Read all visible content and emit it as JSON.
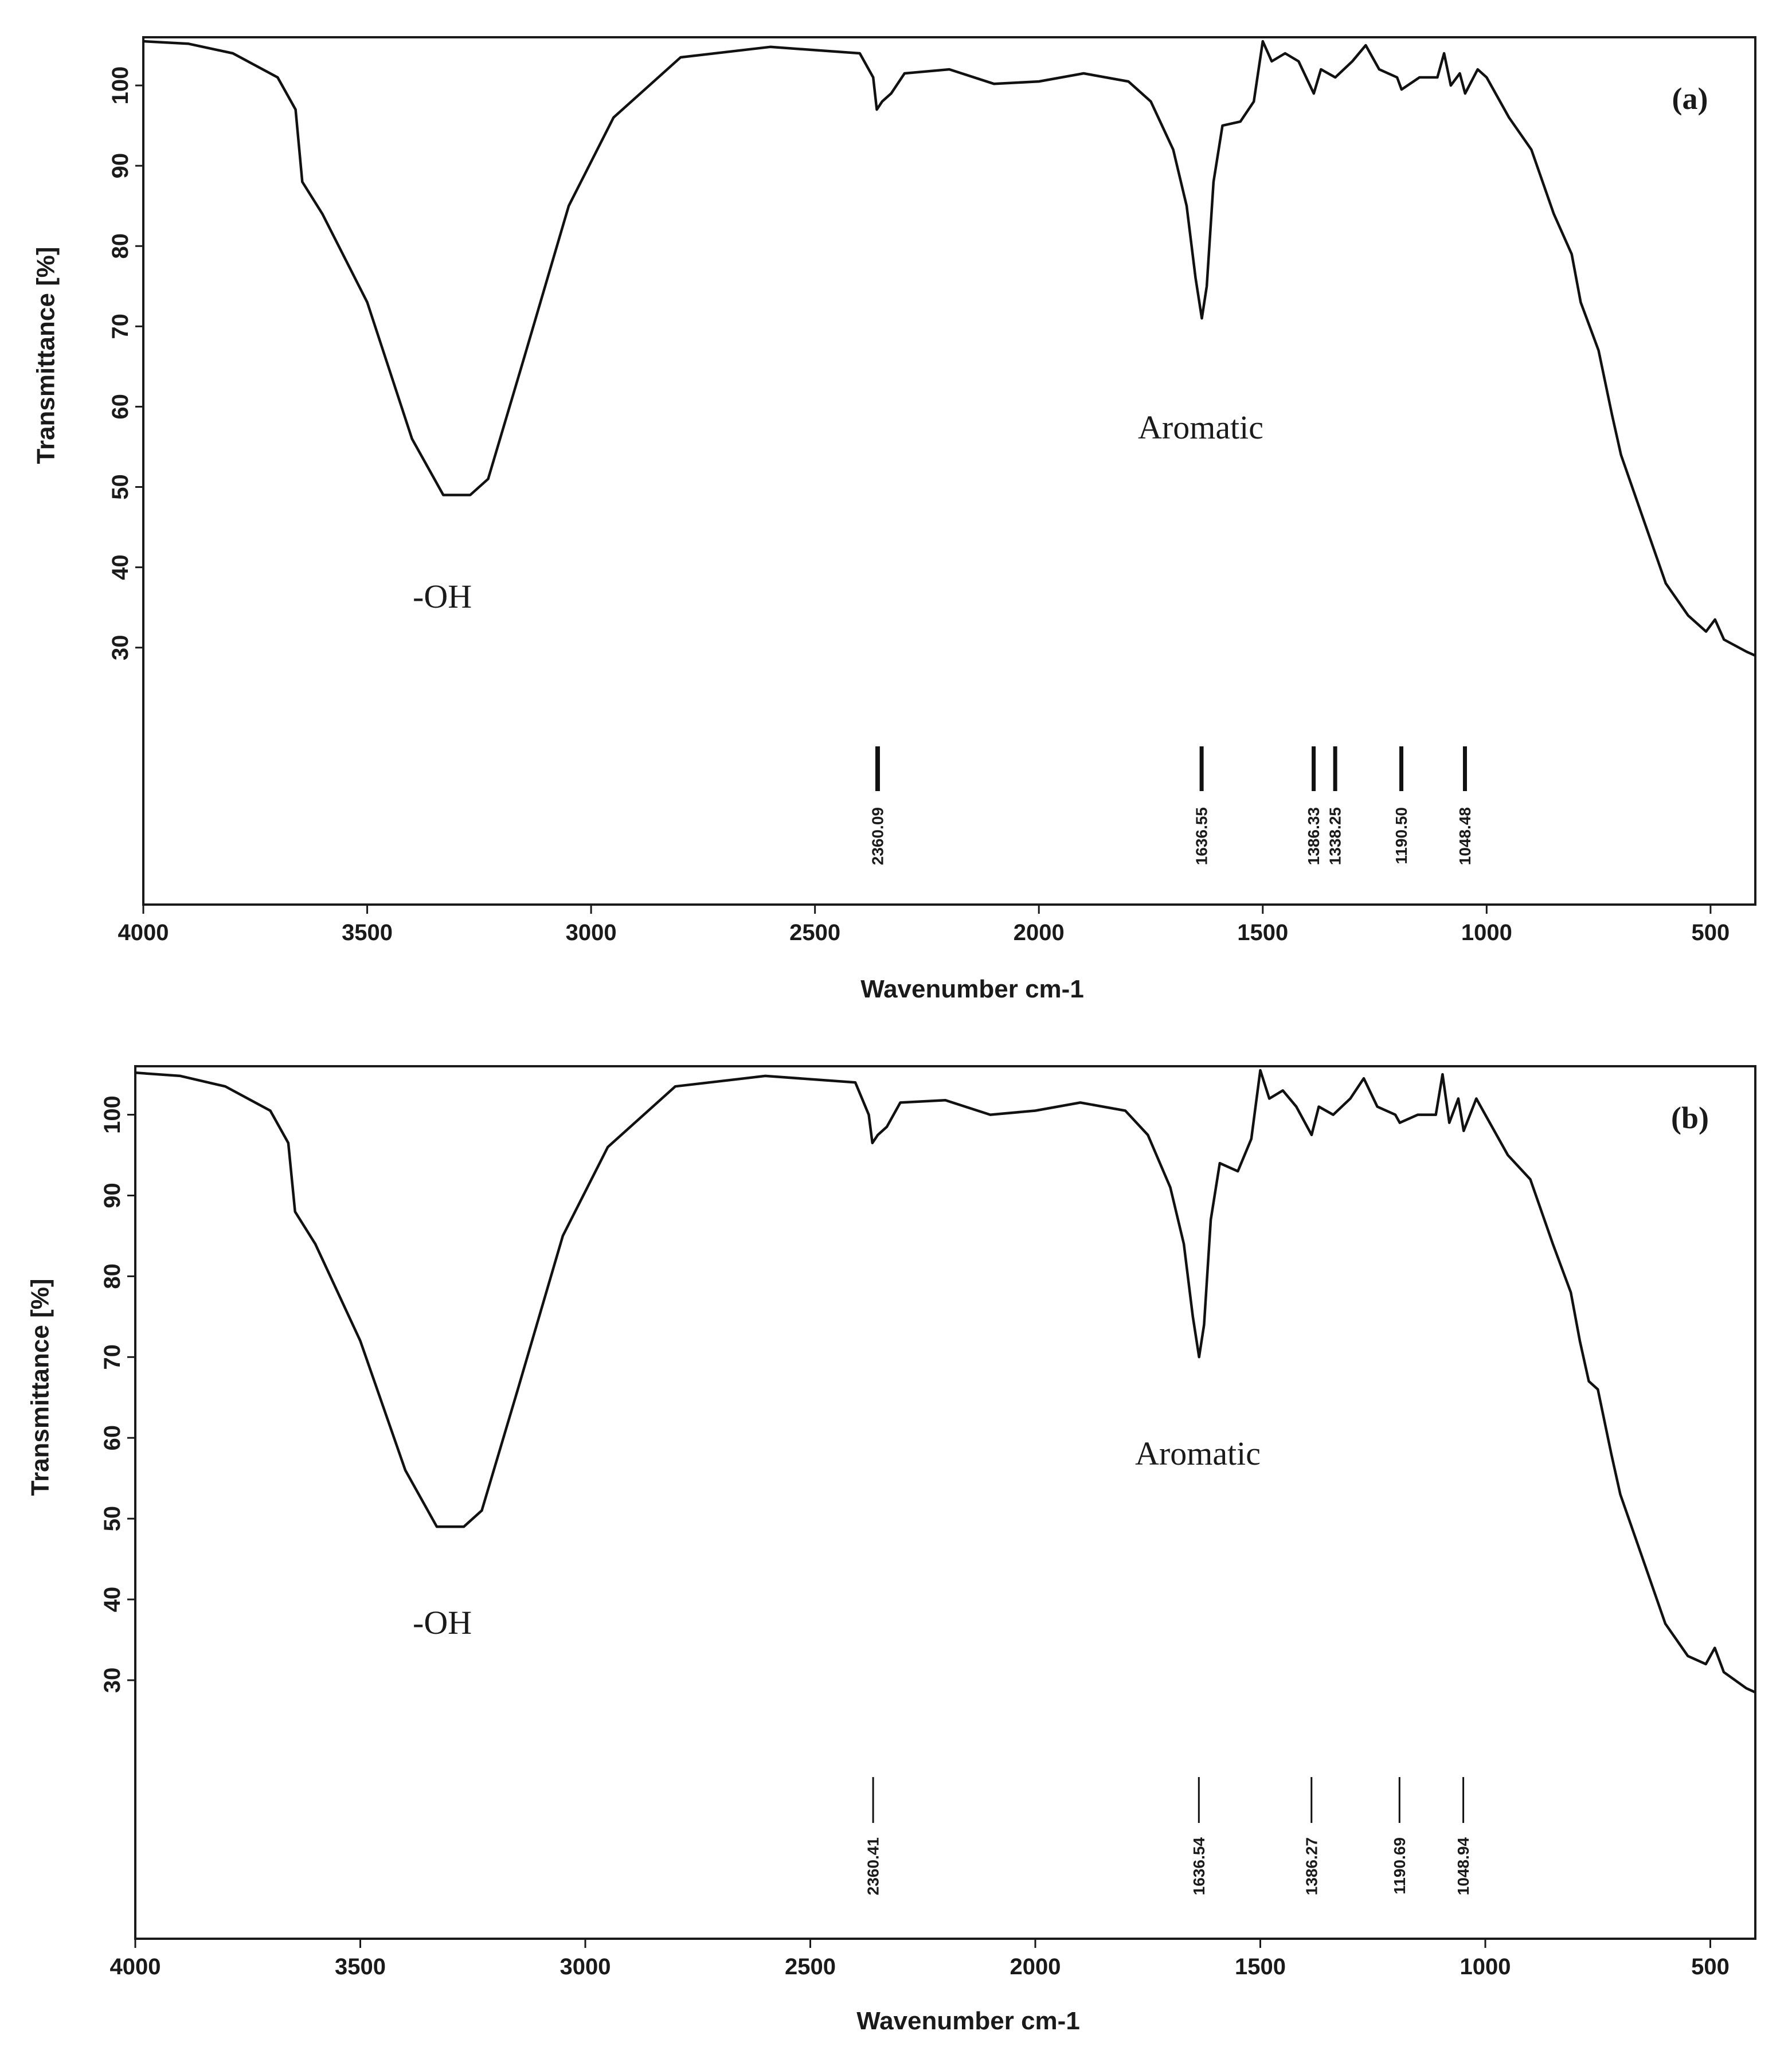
{
  "chart_data": [
    {
      "type": "line",
      "panel_label": "(a)",
      "xlabel": "Wavenumber cm-1",
      "ylabel": "Transmittance [%]",
      "xlim": [
        4000,
        400
      ],
      "ylim": [
        -2,
        106
      ],
      "x_ticks": [
        4000,
        3500,
        3000,
        2500,
        2000,
        1500,
        1000,
        500
      ],
      "y_ticks": [
        30,
        40,
        50,
        60,
        70,
        80,
        90,
        100
      ],
      "series": [
        {
          "name": "spectrum",
          "points": [
            [
              4000,
              105.5
            ],
            [
              3900,
              105.2
            ],
            [
              3800,
              104
            ],
            [
              3700,
              101
            ],
            [
              3660,
              97
            ],
            [
              3645,
              88
            ],
            [
              3600,
              84
            ],
            [
              3500,
              73
            ],
            [
              3400,
              56
            ],
            [
              3330,
              49
            ],
            [
              3270,
              49
            ],
            [
              3230,
              51
            ],
            [
              3150,
              66
            ],
            [
              3050,
              85
            ],
            [
              2950,
              96
            ],
            [
              2800,
              103.5
            ],
            [
              2600,
              104.8
            ],
            [
              2400,
              104
            ],
            [
              2370,
              101
            ],
            [
              2362,
              97
            ],
            [
              2350,
              98
            ],
            [
              2330,
              99
            ],
            [
              2300,
              101.5
            ],
            [
              2200,
              102
            ],
            [
              2100,
              100.2
            ],
            [
              2000,
              100.5
            ],
            [
              1900,
              101.5
            ],
            [
              1800,
              100.5
            ],
            [
              1750,
              98
            ],
            [
              1700,
              92
            ],
            [
              1670,
              85
            ],
            [
              1650,
              76
            ],
            [
              1636,
              71
            ],
            [
              1625,
              75
            ],
            [
              1610,
              88
            ],
            [
              1590,
              95
            ],
            [
              1550,
              95.5
            ],
            [
              1520,
              98
            ],
            [
              1500,
              105.5
            ],
            [
              1480,
              103
            ],
            [
              1450,
              104
            ],
            [
              1420,
              103
            ],
            [
              1386,
              99
            ],
            [
              1370,
              102
            ],
            [
              1338,
              101
            ],
            [
              1300,
              103
            ],
            [
              1270,
              105
            ],
            [
              1240,
              102
            ],
            [
              1200,
              101
            ],
            [
              1190,
              99.5
            ],
            [
              1150,
              101
            ],
            [
              1110,
              101
            ],
            [
              1095,
              104
            ],
            [
              1080,
              100
            ],
            [
              1060,
              101.5
            ],
            [
              1048,
              99
            ],
            [
              1020,
              102
            ],
            [
              1000,
              101
            ],
            [
              950,
              96
            ],
            [
              900,
              92
            ],
            [
              850,
              84
            ],
            [
              810,
              79
            ],
            [
              790,
              73
            ],
            [
              770,
              70
            ],
            [
              750,
              67
            ],
            [
              720,
              59
            ],
            [
              700,
              54
            ],
            [
              650,
              46
            ],
            [
              600,
              38
            ],
            [
              550,
              34
            ],
            [
              510,
              32
            ],
            [
              490,
              33.5
            ],
            [
              470,
              31
            ],
            [
              420,
              29.5
            ],
            [
              400,
              29
            ]
          ]
        }
      ],
      "annotations": [
        "-OH",
        "Aromatic"
      ],
      "peak_markers": [
        {
          "x": 2360.09,
          "label": "2360.09"
        },
        {
          "x": 1636.55,
          "label": "1636.55"
        },
        {
          "x": 1386.33,
          "label": "1386.33"
        },
        {
          "x": 1338.25,
          "label": "1338.25"
        },
        {
          "x": 1190.5,
          "label": "1190.50"
        },
        {
          "x": 1048.48,
          "label": "1048.48"
        }
      ]
    },
    {
      "type": "line",
      "panel_label": "(b)",
      "xlabel": "Wavenumber cm-1",
      "ylabel": "Transmittance [%]",
      "xlim": [
        4000,
        400
      ],
      "ylim": [
        -2,
        106
      ],
      "x_ticks": [
        4000,
        3500,
        3000,
        2500,
        2000,
        1500,
        1000,
        500
      ],
      "y_ticks": [
        30,
        40,
        50,
        60,
        70,
        80,
        90,
        100
      ],
      "series": [
        {
          "name": "spectrum",
          "points": [
            [
              4000,
              105.2
            ],
            [
              3900,
              104.8
            ],
            [
              3800,
              103.5
            ],
            [
              3700,
              100.5
            ],
            [
              3660,
              96.5
            ],
            [
              3645,
              88
            ],
            [
              3600,
              84
            ],
            [
              3500,
              72
            ],
            [
              3400,
              56
            ],
            [
              3330,
              49
            ],
            [
              3270,
              49
            ],
            [
              3230,
              51
            ],
            [
              3150,
              66
            ],
            [
              3050,
              85
            ],
            [
              2950,
              96
            ],
            [
              2800,
              103.5
            ],
            [
              2600,
              104.8
            ],
            [
              2400,
              104
            ],
            [
              2370,
              100
            ],
            [
              2362,
              96.5
            ],
            [
              2350,
              97.5
            ],
            [
              2330,
              98.5
            ],
            [
              2300,
              101.5
            ],
            [
              2200,
              101.8
            ],
            [
              2100,
              100
            ],
            [
              2000,
              100.5
            ],
            [
              1900,
              101.5
            ],
            [
              1800,
              100.5
            ],
            [
              1750,
              97.5
            ],
            [
              1700,
              91
            ],
            [
              1670,
              84
            ],
            [
              1650,
              75
            ],
            [
              1636,
              70
            ],
            [
              1625,
              74
            ],
            [
              1610,
              87
            ],
            [
              1590,
              94
            ],
            [
              1550,
              93
            ],
            [
              1520,
              97
            ],
            [
              1500,
              105.5
            ],
            [
              1480,
              102
            ],
            [
              1450,
              103
            ],
            [
              1420,
              101
            ],
            [
              1386,
              97.5
            ],
            [
              1370,
              101
            ],
            [
              1338,
              100
            ],
            [
              1300,
              102
            ],
            [
              1270,
              104.5
            ],
            [
              1240,
              101
            ],
            [
              1200,
              100
            ],
            [
              1190,
              99
            ],
            [
              1150,
              100
            ],
            [
              1110,
              100
            ],
            [
              1095,
              105
            ],
            [
              1080,
              99
            ],
            [
              1060,
              102
            ],
            [
              1048,
              98
            ],
            [
              1020,
              102
            ],
            [
              1000,
              100
            ],
            [
              950,
              95
            ],
            [
              900,
              92
            ],
            [
              850,
              84
            ],
            [
              810,
              78
            ],
            [
              790,
              72
            ],
            [
              770,
              67
            ],
            [
              750,
              66
            ],
            [
              720,
              58
            ],
            [
              700,
              53
            ],
            [
              650,
              45
            ],
            [
              600,
              37
            ],
            [
              550,
              33
            ],
            [
              510,
              32
            ],
            [
              490,
              34
            ],
            [
              470,
              31
            ],
            [
              420,
              29
            ],
            [
              400,
              28.5
            ]
          ]
        }
      ],
      "annotations": [
        "-OH",
        "Aromatic"
      ],
      "peak_markers": [
        {
          "x": 2360.41,
          "label": "2360.41"
        },
        {
          "x": 1636.54,
          "label": "1636.54"
        },
        {
          "x": 1386.27,
          "label": "1386.27"
        },
        {
          "x": 1190.69,
          "label": "1190.69"
        },
        {
          "x": 1048.94,
          "label": "1048.94"
        }
      ]
    }
  ]
}
